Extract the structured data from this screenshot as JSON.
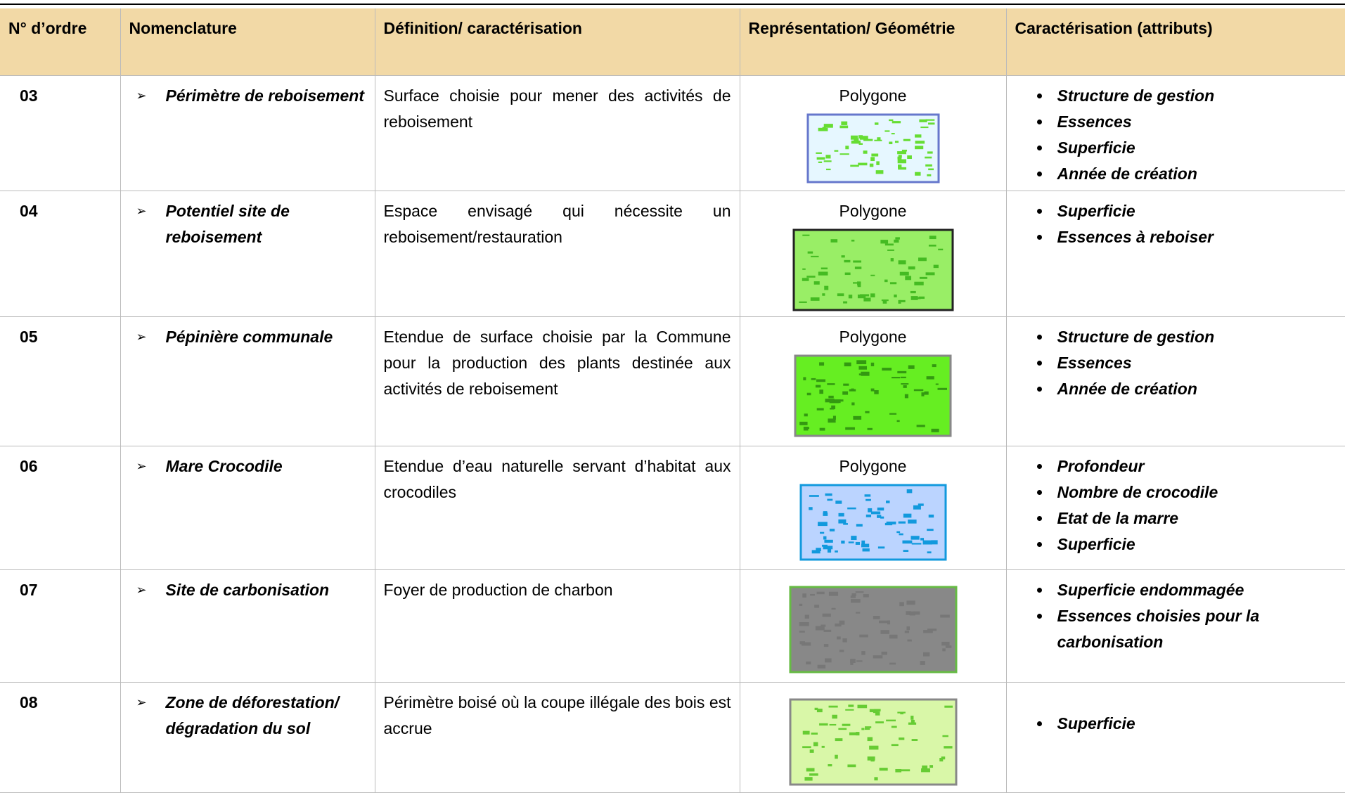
{
  "table": {
    "columns": [
      "N° d’ordre",
      "Nomenclature",
      "Définition/ caractérisation",
      "Représentation/ Géométrie",
      "Caractérisation (attributs)"
    ],
    "rows": [
      {
        "number": "03",
        "nomenclature": "Périmètre de reboisement",
        "definition": "Surface choisie pour mener des activités de reboisement",
        "geometry": "Polygone",
        "attributes": [
          "Structure de gestion",
          "Essences",
          "Superficie",
          "Année de création"
        ]
      },
      {
        "number": "04",
        "nomenclature": "Potentiel site de reboisement",
        "definition": "Espace envisagé qui nécessite un reboisement/restauration",
        "geometry": "Polygone",
        "attributes": [
          "Superficie",
          "Essences à reboiser"
        ]
      },
      {
        "number": "05",
        "nomenclature": "Pépinière communale",
        "definition": "Etendue de surface choisie par la Commune pour la production des plants destinée aux activités de reboisement",
        "geometry": "Polygone",
        "attributes": [
          "Structure de gestion",
          "Essences",
          "Année de création"
        ]
      },
      {
        "number": "06",
        "nomenclature": "Mare Crocodile",
        "definition": "Etendue d’eau naturelle servant d’habitat aux crocodiles",
        "geometry": "Polygone",
        "attributes": [
          "Profondeur",
          "Nombre de crocodile",
          "Etat de la marre",
          "Superficie"
        ]
      },
      {
        "number": "07",
        "nomenclature": "Site de carbonisation",
        "definition": "Foyer de production de charbon",
        "attributes": [
          "Superficie endommagée",
          "Essences choisies pour la carbonisation"
        ]
      },
      {
        "number": "08",
        "nomenclature": "Zone de déforestation/ dégradation du sol",
        "definition": "Périmètre boisé où la coupe illégale des bois est accrue",
        "attributes": [
          "Superficie"
        ]
      }
    ]
  }
}
